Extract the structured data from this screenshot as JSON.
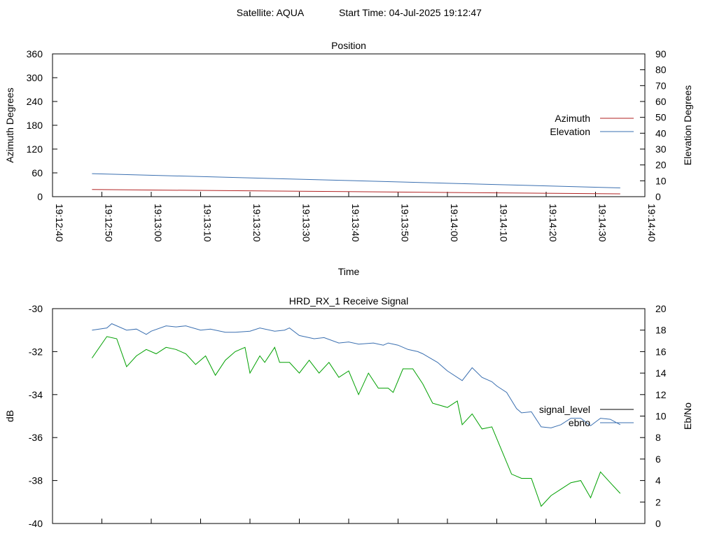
{
  "header": {
    "satellite_label": "Satellite: AQUA",
    "start_time_label": "Start Time: 04-Jul-2025 19:12:47"
  },
  "chart_data": [
    {
      "id": "position",
      "type": "line",
      "title": "Position",
      "xlabel": "Time",
      "ylabel_left": "Azimuth Degrees",
      "ylabel_right": "Elevation Degrees",
      "x_ticks": [
        "19:12:40",
        "19:12:50",
        "19:13:00",
        "19:13:10",
        "19:13:20",
        "19:13:30",
        "19:13:40",
        "19:13:50",
        "19:14:00",
        "19:14:10",
        "19:14:20",
        "19:14:30",
        "19:14:40"
      ],
      "xlim": [
        "19:12:40",
        "19:14:40"
      ],
      "ylim_left": [
        0,
        360
      ],
      "y_ticks_left": [
        0,
        60,
        120,
        180,
        240,
        300,
        360
      ],
      "ylim_right": [
        0,
        90
      ],
      "y_ticks_right": [
        0,
        10,
        20,
        30,
        40,
        50,
        60,
        70,
        80,
        90
      ],
      "legend_position": "right",
      "series": [
        {
          "name": "Azimuth",
          "axis": "left",
          "color": "#b22222",
          "x": [
            "19:12:48",
            "19:14:35"
          ],
          "values": [
            18,
            7
          ]
        },
        {
          "name": "Elevation",
          "axis": "right",
          "color": "#3a6fb0",
          "x": [
            "19:12:48",
            "19:14:35"
          ],
          "values": [
            14.5,
            5.5
          ]
        }
      ]
    },
    {
      "id": "signal",
      "type": "line",
      "title": "HRD_RX_1 Receive Signal",
      "ylabel_left": "dB",
      "ylabel_right": "Eb/No",
      "ylim_left": [
        -40,
        -30
      ],
      "y_ticks_left": [
        -40,
        -38,
        -36,
        -34,
        -32,
        -30
      ],
      "ylim_right": [
        0,
        20
      ],
      "y_ticks_right": [
        0,
        2,
        4,
        6,
        8,
        10,
        12,
        14,
        16,
        18,
        20
      ],
      "xlim": [
        "19:12:40",
        "19:14:40"
      ],
      "x_tick_count": 13,
      "legend_position": "right",
      "series": [
        {
          "name": "signal_level",
          "axis": "left",
          "color": "#000000",
          "legend_only": true,
          "x": [],
          "values": []
        },
        {
          "name": "ebno",
          "axis": "right",
          "color": "#3a6fb0",
          "x": [
            "19:12:48",
            "19:12:51",
            "19:12:52",
            "19:12:55",
            "19:12:57",
            "19:12:59",
            "19:13:00",
            "19:13:03",
            "19:13:05",
            "19:13:07",
            "19:13:10",
            "19:13:12",
            "19:13:15",
            "19:13:17",
            "19:13:20",
            "19:13:22",
            "19:13:25",
            "19:13:27",
            "19:13:28",
            "19:13:30",
            "19:13:33",
            "19:13:35",
            "19:13:38",
            "19:13:40",
            "19:13:42",
            "19:13:45",
            "19:13:47",
            "19:13:48",
            "19:13:50",
            "19:13:52",
            "19:13:54",
            "19:13:55",
            "19:13:58",
            "19:14:00",
            "19:14:03",
            "19:14:05",
            "19:14:07",
            "19:14:09",
            "19:14:10",
            "19:14:12",
            "19:14:14",
            "19:14:15",
            "19:14:17",
            "19:14:19",
            "19:14:21",
            "19:14:23",
            "19:14:25",
            "19:14:27",
            "19:14:29",
            "19:14:31",
            "19:14:33",
            "19:14:35"
          ],
          "values": [
            18.0,
            18.2,
            18.6,
            18.0,
            18.1,
            17.6,
            17.9,
            18.4,
            18.3,
            18.4,
            18.0,
            18.1,
            17.8,
            17.8,
            17.9,
            18.2,
            17.9,
            18.0,
            18.2,
            17.5,
            17.2,
            17.3,
            16.8,
            16.9,
            16.7,
            16.8,
            16.6,
            16.8,
            16.6,
            16.2,
            16.0,
            15.8,
            15.0,
            14.2,
            13.3,
            14.5,
            13.6,
            13.2,
            12.8,
            12.2,
            10.7,
            10.3,
            10.4,
            9.0,
            8.9,
            9.2,
            9.8,
            9.8,
            9.1,
            9.8,
            9.7,
            9.2
          ]
        },
        {
          "name": "",
          "axis": "left",
          "color": "#00a000",
          "x": [
            "19:12:48",
            "19:12:51",
            "19:12:53",
            "19:12:55",
            "19:12:57",
            "19:12:59",
            "19:13:01",
            "19:13:03",
            "19:13:05",
            "19:13:07",
            "19:13:09",
            "19:13:11",
            "19:13:13",
            "19:13:15",
            "19:13:17",
            "19:13:19",
            "19:13:20",
            "19:13:22",
            "19:13:23",
            "19:13:25",
            "19:13:26",
            "19:13:28",
            "19:13:30",
            "19:13:32",
            "19:13:34",
            "19:13:36",
            "19:13:38",
            "19:13:40",
            "19:13:42",
            "19:13:44",
            "19:13:46",
            "19:13:48",
            "19:13:49",
            "19:13:51",
            "19:13:53",
            "19:13:55",
            "19:13:57",
            "19:14:00",
            "19:14:02",
            "19:14:03",
            "19:14:05",
            "19:14:07",
            "19:14:09",
            "19:14:11",
            "19:14:13",
            "19:14:15",
            "19:14:17",
            "19:14:19",
            "19:14:21",
            "19:14:23",
            "19:14:25",
            "19:14:27",
            "19:14:29",
            "19:14:31",
            "19:14:33",
            "19:14:35"
          ],
          "values": [
            -32.3,
            -31.3,
            -31.4,
            -32.7,
            -32.2,
            -31.9,
            -32.1,
            -31.8,
            -31.9,
            -32.1,
            -32.6,
            -32.2,
            -33.1,
            -32.4,
            -32.0,
            -31.8,
            -33.0,
            -32.2,
            -32.5,
            -31.8,
            -32.5,
            -32.5,
            -33.0,
            -32.4,
            -33.0,
            -32.5,
            -33.2,
            -32.9,
            -34.0,
            -33.0,
            -33.7,
            -33.7,
            -33.9,
            -32.8,
            -32.8,
            -33.5,
            -34.4,
            -34.6,
            -34.3,
            -35.4,
            -34.9,
            -35.6,
            -35.5,
            -36.6,
            -37.7,
            -37.9,
            -37.9,
            -39.2,
            -38.7,
            -38.4,
            -38.1,
            -38.0,
            -38.8,
            -37.6,
            -38.1,
            -38.6
          ]
        }
      ]
    }
  ]
}
